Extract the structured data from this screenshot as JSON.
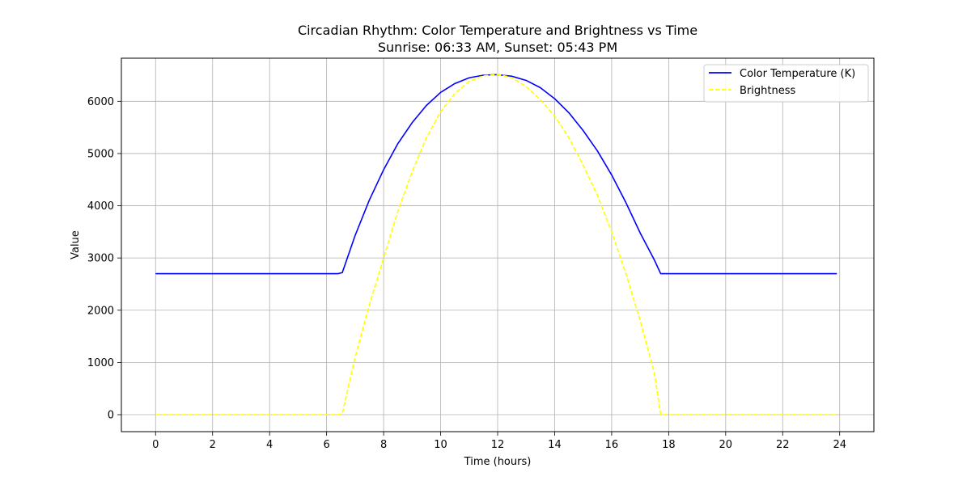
{
  "chart_data": {
    "type": "line",
    "title": "Circadian Rhythm: Color Temperature and Brightness vs Time",
    "subtitle": "Sunrise: 06:33 AM, Sunset: 05:43 PM",
    "xlabel": "Time (hours)",
    "ylabel": "Value",
    "xlim": [
      -1.2,
      25.2
    ],
    "ylim": [
      -325,
      6825
    ],
    "xticks": [
      0,
      2,
      4,
      6,
      8,
      10,
      12,
      14,
      16,
      18,
      20,
      22,
      24
    ],
    "yticks": [
      0,
      1000,
      2000,
      3000,
      4000,
      5000,
      6000
    ],
    "grid": true,
    "legend_position": "top-right",
    "x": [
      0,
      1,
      2,
      3,
      4,
      5,
      6,
      6.4,
      6.55,
      7,
      7.5,
      8,
      8.5,
      9,
      9.5,
      10,
      10.5,
      11,
      11.5,
      12,
      12.15,
      12.5,
      13,
      13.5,
      14,
      14.5,
      15,
      15.5,
      16,
      16.5,
      17,
      17.5,
      17.72,
      18,
      19,
      20,
      21,
      22,
      23,
      23.9
    ],
    "series": [
      {
        "name": "Color Temperature (K)",
        "color": "#0000ff",
        "style": "solid",
        "values": [
          2700,
          2700,
          2700,
          2700,
          2700,
          2700,
          2700,
          2700,
          2720,
          3430,
          4110,
          4690,
          5190,
          5590,
          5920,
          6170,
          6340,
          6450,
          6500,
          6510,
          6500,
          6480,
          6400,
          6260,
          6050,
          5780,
          5440,
          5050,
          4590,
          4060,
          3480,
          2960,
          2700,
          2700,
          2700,
          2700,
          2700,
          2700,
          2700,
          2700
        ]
      },
      {
        "name": "Brightness",
        "color": "#ffff00",
        "style": "dashed",
        "values": [
          0,
          0,
          0,
          0,
          0,
          0,
          0,
          0,
          20,
          1100,
          2100,
          3000,
          3900,
          4650,
          5300,
          5800,
          6150,
          6380,
          6490,
          6510,
          6500,
          6450,
          6280,
          6030,
          5720,
          5300,
          4780,
          4200,
          3500,
          2700,
          1800,
          800,
          0,
          0,
          0,
          0,
          0,
          0,
          0,
          0
        ]
      }
    ]
  }
}
